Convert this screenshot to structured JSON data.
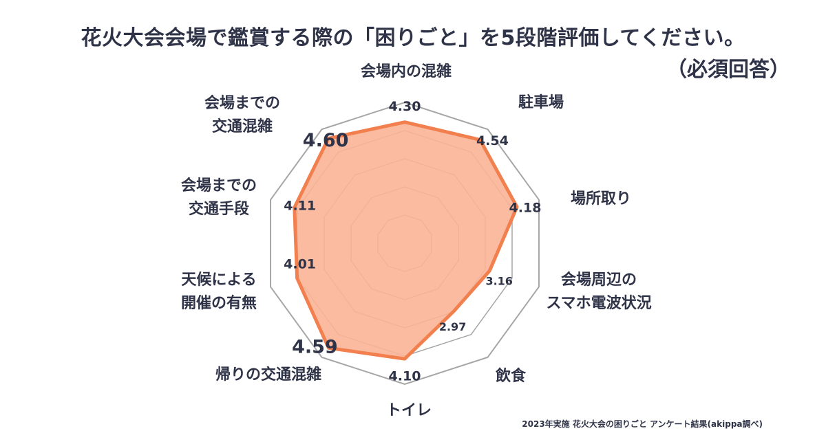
{
  "title": "花火大会会場で鑑賞する際の「困りごと」を5段階評価してください。",
  "subtitle": "（必須回答）",
  "footer": "2023年実施 花火大会の困りごと アンケート結果(akippa調べ)",
  "colors": {
    "fill": "#f9b497",
    "line": "#f2804f",
    "grid": "#a6a6a6",
    "text": "#2f3347"
  },
  "chart_data": {
    "type": "radar",
    "categories": [
      "会場内の混雑",
      "駐車場",
      "場所取り",
      "会場周辺の\nスマホ電波状況",
      "飲食",
      "トイレ",
      "帰りの交通混雑",
      "天候による\n開催の有無",
      "会場までの\n交通手段",
      "会場までの\n交通混雑"
    ],
    "values": [
      4.3,
      4.54,
      4.18,
      3.16,
      2.97,
      4.1,
      4.59,
      4.01,
      4.11,
      4.6
    ],
    "value_labels": [
      "4.30",
      "4.54",
      "4.18",
      "3.16",
      "2.97",
      "4.10",
      "4.59",
      "4.01",
      "4.11",
      "4.60"
    ],
    "highlight": [
      "4.59",
      "4.60"
    ],
    "rlim": [
      0,
      5
    ],
    "grid_levels": 5,
    "grid": true,
    "legend": "none"
  }
}
